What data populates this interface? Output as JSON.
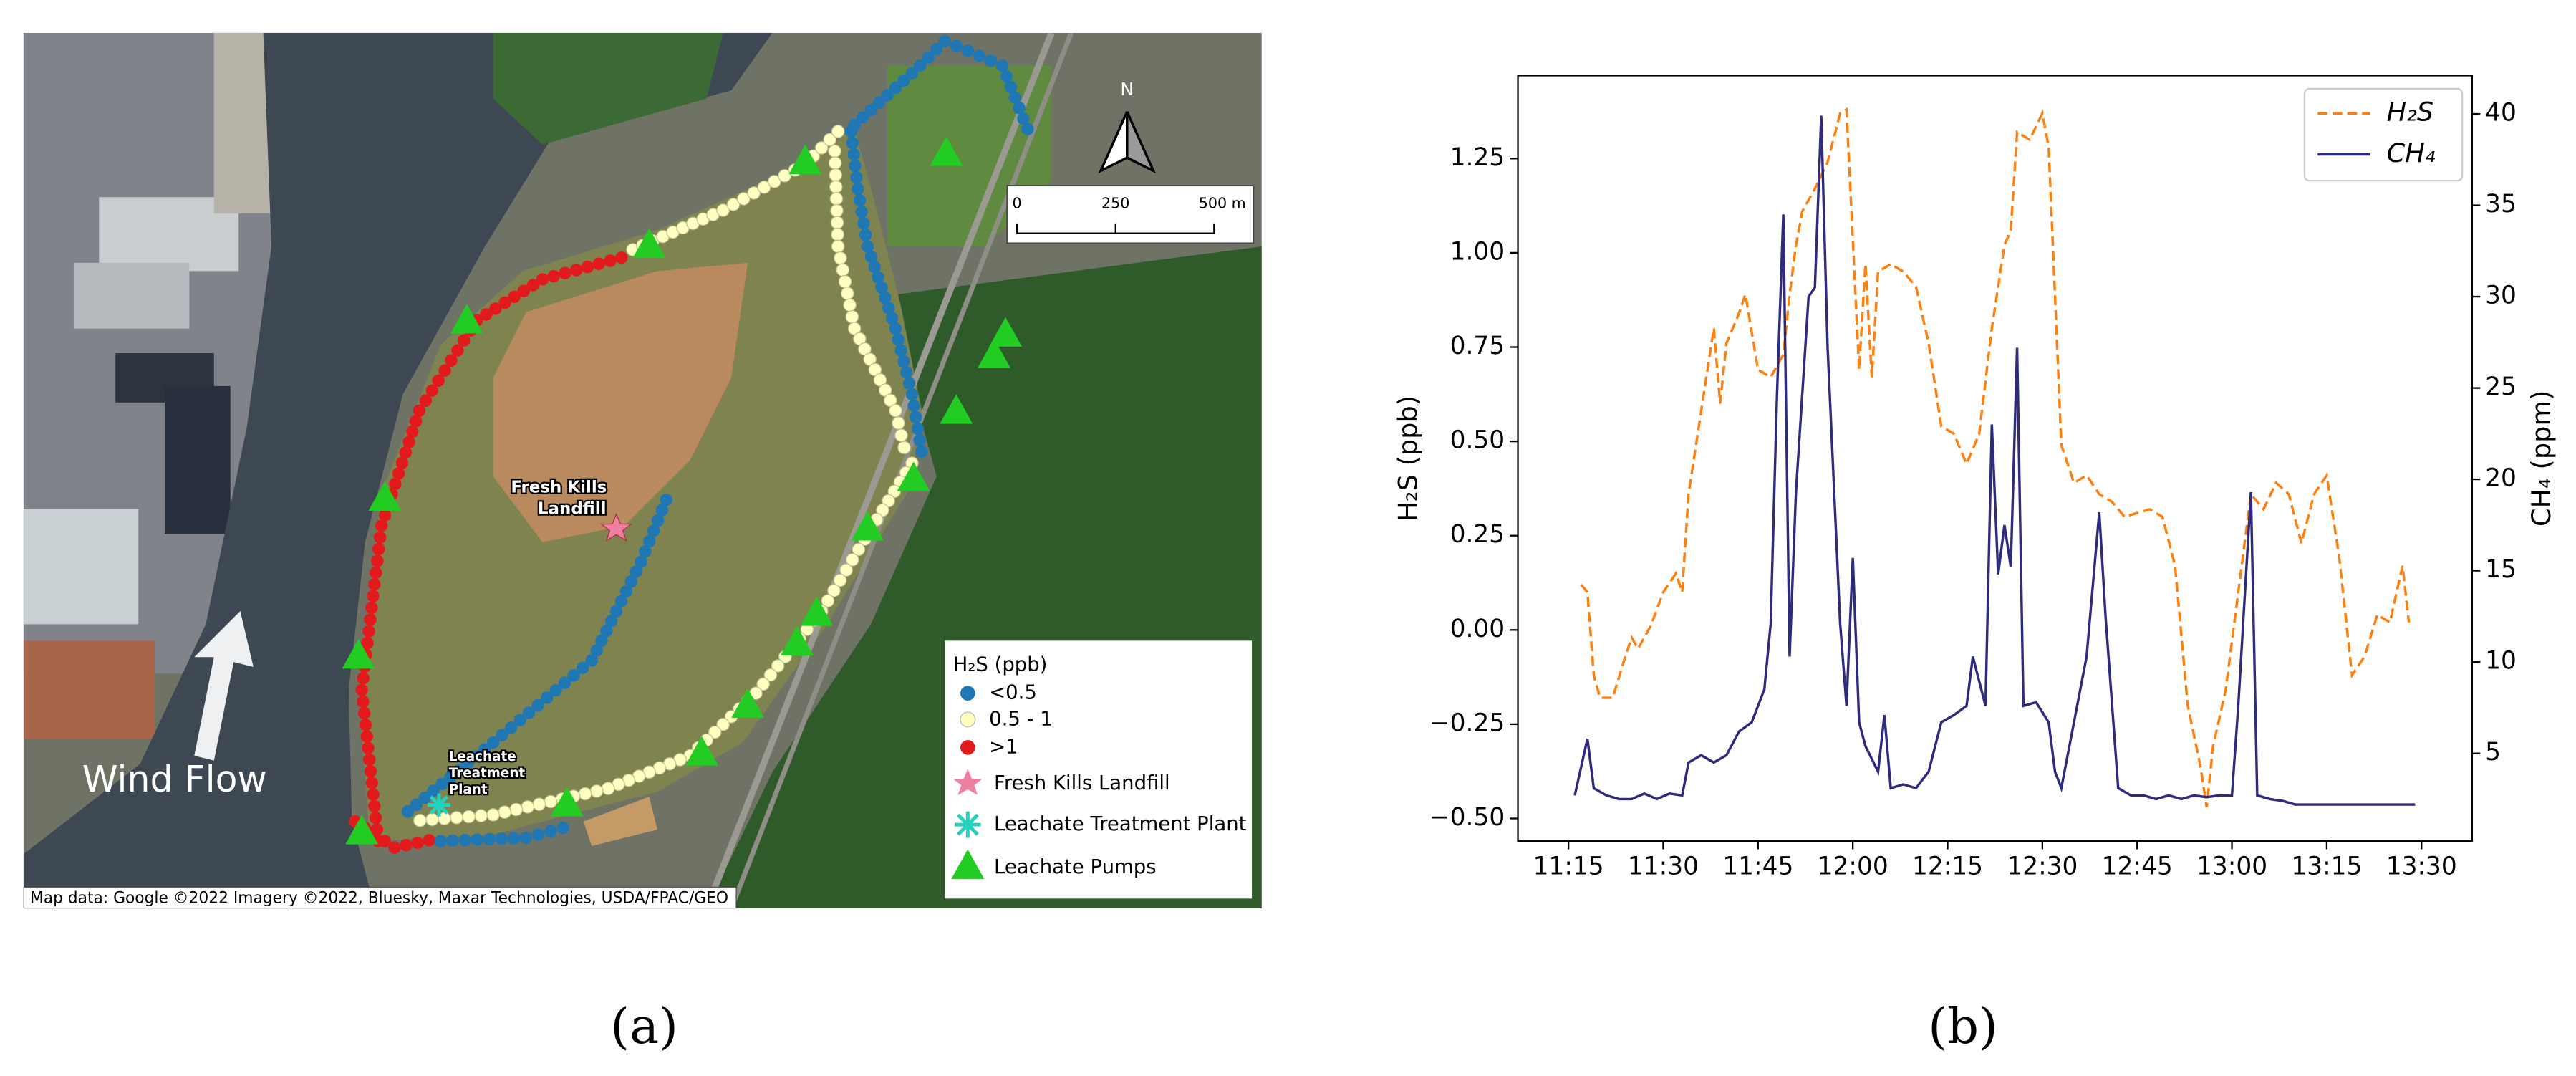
{
  "map": {
    "attribution": "Map data: Google ©2022 Imagery ©2022, Bluesky, Maxar Technologies, USDA/FPAC/GEO",
    "north": "N",
    "scale_bar": [
      "0",
      "250",
      "500 m"
    ],
    "landfill_label": [
      "Fresh Kills",
      "Landfill"
    ],
    "plant_label": [
      "Leachate",
      "Treatment",
      "Plant"
    ],
    "wind_label": "Wind Flow",
    "legend_title": "H₂S (ppb)",
    "legend_items": [
      "<0.5",
      "0.5 - 1",
      ">1",
      "Fresh Kills Landfill",
      "Leachate Treatment Plant",
      "Leachate Pumps"
    ]
  },
  "panels": [
    "(a)",
    "(b)"
  ],
  "chart_data": {
    "type": "line",
    "y_label": "H₂S (ppb)",
    "y2_label": "CH₄ (ppm)",
    "xlim": [
      "11:07",
      "13:38"
    ],
    "xticks": [
      "11:15",
      "11:30",
      "11:45",
      "12:00",
      "12:15",
      "12:30",
      "12:45",
      "13:00",
      "13:15",
      "13:30"
    ],
    "ylim": [
      -0.56,
      1.47
    ],
    "yticks": [
      {
        "value": -0.5,
        "label": "−0.50"
      },
      {
        "value": -0.25,
        "label": "−0.25"
      },
      {
        "value": 0,
        "label": "0.00"
      },
      {
        "value": 0.25,
        "label": "0.25"
      },
      {
        "value": 0.5,
        "label": "0.50"
      },
      {
        "value": 0.75,
        "label": "0.75"
      },
      {
        "value": 1,
        "label": "1.00"
      },
      {
        "value": 1.25,
        "label": "1.25"
      }
    ],
    "y2lim": [
      0.2,
      42.1
    ],
    "y2ticks": [
      5,
      10,
      15,
      20,
      25,
      30,
      35,
      40
    ],
    "legend": "upper right",
    "grid": false,
    "series": [
      {
        "name": "H₂S",
        "color": "#ff7f0e",
        "linestyle": "dashed",
        "x": [
          "11:17",
          "11:18",
          "11:19",
          "11:20",
          "11:22",
          "11:24",
          "11:25",
          "11:26",
          "11:28",
          "11:30",
          "11:32",
          "11:33",
          "11:34",
          "11:36",
          "11:38",
          "11:39",
          "11:40",
          "11:42",
          "11:43",
          "11:45",
          "11:47",
          "11:49",
          "11:50",
          "11:51",
          "11:52",
          "11:54",
          "11:56",
          "11:58",
          "11:59",
          "12:01",
          "12:02",
          "12:03",
          "12:04",
          "12:06",
          "12:08",
          "12:10",
          "12:12",
          "12:14",
          "12:16",
          "12:18",
          "12:20",
          "12:22",
          "12:24",
          "12:25",
          "12:26",
          "12:28",
          "12:30",
          "12:31",
          "12:33",
          "12:35",
          "12:37",
          "12:39",
          "12:41",
          "12:43",
          "12:45",
          "12:47",
          "12:49",
          "12:51",
          "12:53",
          "12:55",
          "12:56",
          "12:57",
          "12:59",
          "13:01",
          "13:03",
          "13:05",
          "13:07",
          "13:09",
          "13:11",
          "13:13",
          "13:15",
          "13:17",
          "13:19",
          "13:21",
          "13:23",
          "13:25",
          "13:27",
          "13:28"
        ],
        "values": [
          0.12,
          0.1,
          -0.12,
          -0.18,
          -0.18,
          -0.07,
          -0.02,
          -0.05,
          0.01,
          0.1,
          0.15,
          0.1,
          0.36,
          0.58,
          0.8,
          0.6,
          0.76,
          0.84,
          0.89,
          0.69,
          0.67,
          0.73,
          0.89,
          1.02,
          1.11,
          1.17,
          1.24,
          1.37,
          1.38,
          0.69,
          0.97,
          0.67,
          0.95,
          0.97,
          0.95,
          0.91,
          0.76,
          0.54,
          0.52,
          0.44,
          0.52,
          0.8,
          1.02,
          1.06,
          1.32,
          1.3,
          1.37,
          1.28,
          0.49,
          0.39,
          0.41,
          0.36,
          0.34,
          0.3,
          0.31,
          0.32,
          0.3,
          0.17,
          -0.2,
          -0.36,
          -0.47,
          -0.31,
          -0.16,
          0.1,
          0.36,
          0.32,
          0.39,
          0.36,
          0.23,
          0.36,
          0.41,
          0.19,
          -0.12,
          -0.07,
          0.04,
          0.02,
          0.17,
          0.02
        ]
      },
      {
        "name": "CH₄",
        "color": "#2e2a7c",
        "linestyle": "solid",
        "axis": "y2",
        "x": [
          "11:16",
          "11:18",
          "11:19",
          "11:21",
          "11:23",
          "11:25",
          "11:27",
          "11:29",
          "11:31",
          "11:33",
          "11:34",
          "11:36",
          "11:38",
          "11:40",
          "11:42",
          "11:44",
          "11:46",
          "11:47",
          "11:48",
          "11:49",
          "11:50",
          "11:51",
          "11:53",
          "11:54",
          "11:55",
          "11:56",
          "11:58",
          "11:59",
          "12:00",
          "12:01",
          "12:02",
          "12:04",
          "12:05",
          "12:06",
          "12:08",
          "12:10",
          "12:12",
          "12:14",
          "12:16",
          "12:18",
          "12:19",
          "12:21",
          "12:22",
          "12:23",
          "12:24",
          "12:25",
          "12:26",
          "12:27",
          "12:29",
          "12:31",
          "12:32",
          "12:33",
          "12:35",
          "12:37",
          "12:39",
          "12:40",
          "12:42",
          "12:44",
          "12:46",
          "12:48",
          "12:50",
          "12:52",
          "12:54",
          "12:56",
          "12:58",
          "13:00",
          "13:01",
          "13:03",
          "13:04",
          "13:06",
          "13:08",
          "13:10",
          "13:15",
          "13:20",
          "13:25",
          "13:29"
        ],
        "values": [
          2.7,
          5.8,
          3.1,
          2.7,
          2.5,
          2.5,
          2.8,
          2.5,
          2.8,
          2.7,
          4.5,
          4.9,
          4.5,
          4.9,
          6.2,
          6.7,
          8.5,
          12.1,
          24.6,
          34.5,
          10.3,
          19.3,
          30.0,
          30.5,
          39.9,
          27.3,
          12.1,
          7.6,
          15.7,
          6.7,
          5.4,
          4.0,
          7.1,
          3.1,
          3.3,
          3.1,
          4.0,
          6.7,
          7.1,
          7.6,
          10.3,
          7.6,
          23.0,
          14.8,
          17.5,
          15.2,
          27.2,
          7.6,
          7.8,
          6.7,
          4.0,
          3.1,
          6.7,
          10.3,
          18.2,
          12.5,
          3.1,
          2.7,
          2.7,
          2.5,
          2.7,
          2.5,
          2.7,
          2.6,
          2.7,
          2.7,
          7.6,
          19.3,
          2.7,
          2.5,
          2.4,
          2.2,
          2.2,
          2.2,
          2.2,
          2.2
        ]
      }
    ]
  }
}
